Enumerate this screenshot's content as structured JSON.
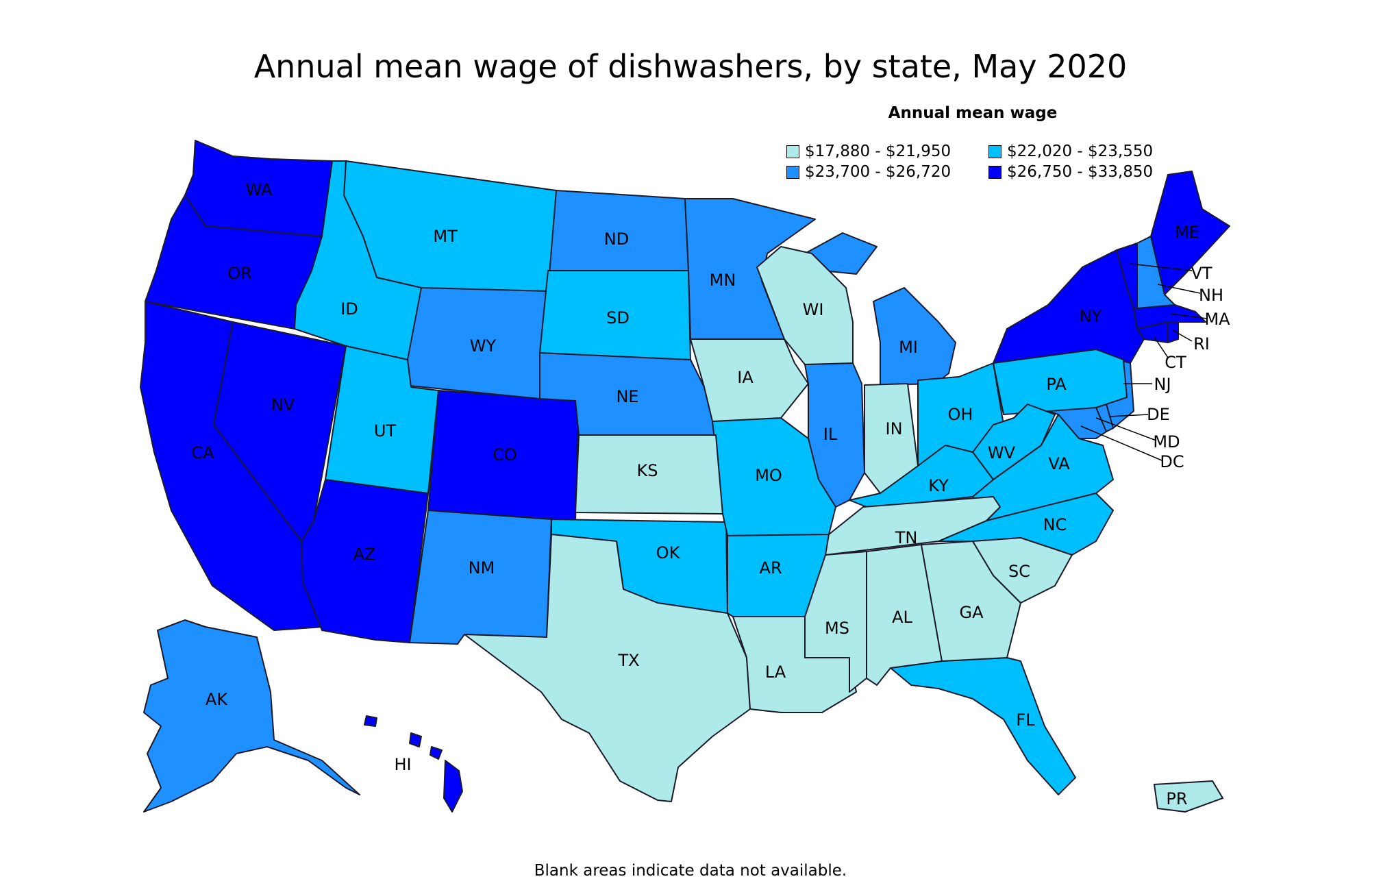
{
  "title": "Annual mean wage of dishwashers, by state, May 2020",
  "legend": {
    "title": "Annual mean wage",
    "bins": [
      {
        "label": "$17,880 - $21,950",
        "color": "#afeaea"
      },
      {
        "label": "$22,020 - $23,550",
        "color": "#00bfff"
      },
      {
        "label": "$23,700 - $26,720",
        "color": "#1e90ff"
      },
      {
        "label": "$26,750 - $33,850",
        "color": "#0000ff"
      }
    ]
  },
  "footnote": "Blank areas indicate data not available.",
  "chart_data": {
    "type": "choropleth",
    "title": "Annual mean wage of dishwashers, by state, May 2020",
    "legend_placement": "top-right",
    "states": [
      {
        "code": "WA",
        "bin": 3
      },
      {
        "code": "OR",
        "bin": 3
      },
      {
        "code": "CA",
        "bin": 3
      },
      {
        "code": "NV",
        "bin": 3
      },
      {
        "code": "AZ",
        "bin": 3
      },
      {
        "code": "CO",
        "bin": 3
      },
      {
        "code": "NY",
        "bin": 3
      },
      {
        "code": "VT",
        "bin": 3
      },
      {
        "code": "ME",
        "bin": 3
      },
      {
        "code": "MA",
        "bin": 3
      },
      {
        "code": "CT",
        "bin": 3
      },
      {
        "code": "RI",
        "bin": 3
      },
      {
        "code": "HI",
        "bin": 3
      },
      {
        "code": "DC",
        "bin": 3
      },
      {
        "code": "WY",
        "bin": 2
      },
      {
        "code": "ND",
        "bin": 2
      },
      {
        "code": "MN",
        "bin": 2
      },
      {
        "code": "NE",
        "bin": 2
      },
      {
        "code": "NM",
        "bin": 2
      },
      {
        "code": "IL",
        "bin": 2
      },
      {
        "code": "MI",
        "bin": 2
      },
      {
        "code": "NH",
        "bin": 2
      },
      {
        "code": "NJ",
        "bin": 2
      },
      {
        "code": "DE",
        "bin": 2
      },
      {
        "code": "MD",
        "bin": 2
      },
      {
        "code": "AK",
        "bin": 2
      },
      {
        "code": "MT",
        "bin": 1
      },
      {
        "code": "ID",
        "bin": 1
      },
      {
        "code": "UT",
        "bin": 1
      },
      {
        "code": "SD",
        "bin": 1
      },
      {
        "code": "OK",
        "bin": 1
      },
      {
        "code": "MO",
        "bin": 1
      },
      {
        "code": "AR",
        "bin": 1
      },
      {
        "code": "OH",
        "bin": 1
      },
      {
        "code": "PA",
        "bin": 1
      },
      {
        "code": "WV",
        "bin": 1
      },
      {
        "code": "VA",
        "bin": 1
      },
      {
        "code": "KY",
        "bin": 1
      },
      {
        "code": "NC",
        "bin": 1
      },
      {
        "code": "FL",
        "bin": 1
      },
      {
        "code": "WI",
        "bin": 0
      },
      {
        "code": "IA",
        "bin": 0
      },
      {
        "code": "KS",
        "bin": 0
      },
      {
        "code": "TX",
        "bin": 0
      },
      {
        "code": "LA",
        "bin": 0
      },
      {
        "code": "MS",
        "bin": 0
      },
      {
        "code": "AL",
        "bin": 0
      },
      {
        "code": "GA",
        "bin": 0
      },
      {
        "code": "SC",
        "bin": 0
      },
      {
        "code": "TN",
        "bin": 0
      },
      {
        "code": "IN",
        "bin": 0
      },
      {
        "code": "PR",
        "bin": 0
      }
    ]
  }
}
